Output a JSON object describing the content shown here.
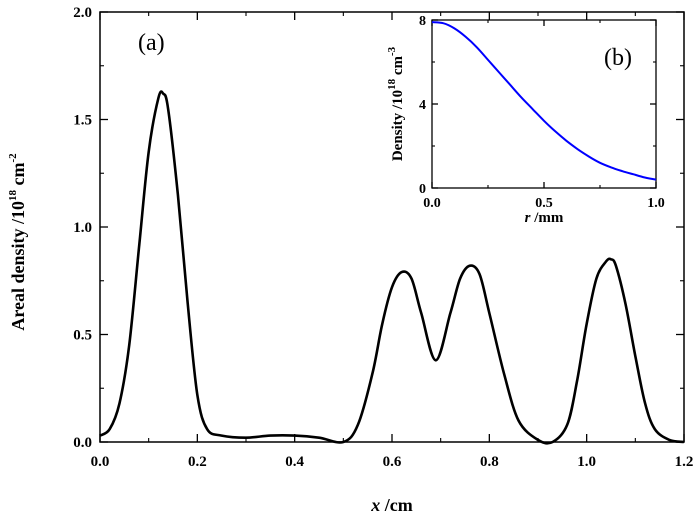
{
  "chart_data": [
    {
      "type": "line",
      "panel_label": "(a)",
      "xlabel_var": "x",
      "xlabel_unit": " /cm",
      "ylabel_text": "Areal density /10",
      "ylabel_exp": "18",
      "ylabel_unit": " cm",
      "ylabel_unit_exp": "-2",
      "xlim": [
        0.0,
        1.2
      ],
      "ylim": [
        0.0,
        2.0
      ],
      "xticks": [
        "0.0",
        "0.2",
        "0.4",
        "0.6",
        "0.8",
        "1.0",
        "1.2"
      ],
      "yticks": [
        "0.0",
        "0.5",
        "1.0",
        "1.5",
        "2.0"
      ],
      "color": "#000000",
      "series": [
        {
          "x": [
            0.0,
            0.02,
            0.04,
            0.06,
            0.08,
            0.1,
            0.12,
            0.13,
            0.14,
            0.16,
            0.18,
            0.2,
            0.22,
            0.25,
            0.3,
            0.35,
            0.4,
            0.45,
            0.5,
            0.53,
            0.56,
            0.58,
            0.6,
            0.62,
            0.64,
            0.66,
            0.69,
            0.72,
            0.74,
            0.76,
            0.78,
            0.8,
            0.83,
            0.86,
            0.9,
            0.93,
            0.96,
            0.98,
            1.0,
            1.02,
            1.04,
            1.05,
            1.06,
            1.08,
            1.1,
            1.12,
            1.14,
            1.17,
            1.2
          ],
          "y": [
            0.03,
            0.06,
            0.18,
            0.45,
            0.9,
            1.35,
            1.6,
            1.62,
            1.55,
            1.15,
            0.65,
            0.22,
            0.06,
            0.03,
            0.02,
            0.03,
            0.03,
            0.02,
            0.0,
            0.08,
            0.32,
            0.55,
            0.72,
            0.79,
            0.76,
            0.6,
            0.38,
            0.6,
            0.76,
            0.82,
            0.78,
            0.6,
            0.32,
            0.1,
            0.01,
            0.0,
            0.08,
            0.28,
            0.55,
            0.76,
            0.84,
            0.85,
            0.82,
            0.64,
            0.4,
            0.18,
            0.06,
            0.01,
            0.0
          ]
        }
      ]
    },
    {
      "type": "line",
      "panel_label": "(b)",
      "xlabel_var": "r",
      "xlabel_unit": " /mm",
      "ylabel_text": "Density /10",
      "ylabel_exp": "18",
      "ylabel_unit": " cm",
      "ylabel_unit_exp": "-3",
      "xlim": [
        0.0,
        1.0
      ],
      "ylim": [
        0,
        8
      ],
      "xticks": [
        "0.0",
        "0.5",
        "1.0"
      ],
      "yticks": [
        "0",
        "4",
        "8"
      ],
      "color": "#0000ff",
      "series": [
        {
          "x": [
            0.0,
            0.05,
            0.1,
            0.15,
            0.2,
            0.25,
            0.3,
            0.35,
            0.4,
            0.45,
            0.5,
            0.55,
            0.6,
            0.65,
            0.7,
            0.75,
            0.8,
            0.85,
            0.9,
            0.95,
            1.0
          ],
          "y": [
            7.9,
            7.85,
            7.6,
            7.2,
            6.7,
            6.1,
            5.5,
            4.9,
            4.3,
            3.75,
            3.2,
            2.7,
            2.25,
            1.85,
            1.5,
            1.2,
            0.98,
            0.8,
            0.65,
            0.5,
            0.4
          ]
        }
      ]
    }
  ]
}
